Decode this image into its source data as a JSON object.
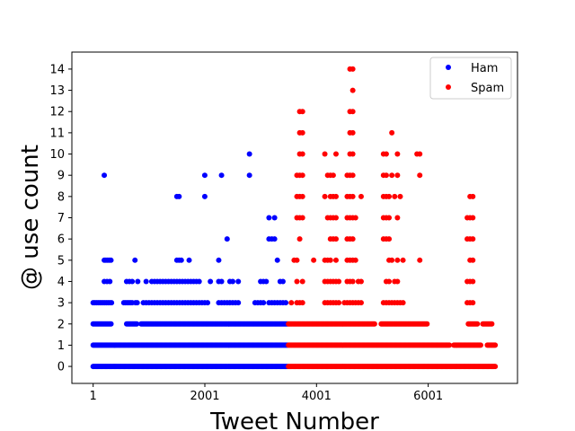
{
  "chart_data": {
    "type": "scatter",
    "xlabel": "Tweet Number",
    "ylabel": "@ use count",
    "xlim": [
      -380,
      7600
    ],
    "ylim": [
      -0.8,
      14.8
    ],
    "xticks": [
      1,
      2001,
      4001,
      6001
    ],
    "yticks": [
      0,
      1,
      2,
      3,
      4,
      5,
      6,
      7,
      8,
      9,
      10,
      11,
      12,
      13,
      14
    ],
    "grid": false,
    "legend_position": "top-right",
    "colors": {
      "Ham": "#0000ff",
      "Spam": "#ff0000"
    },
    "series": [
      {
        "name": "Ham",
        "color": "#0000ff",
        "bands": [
          {
            "y": 0,
            "x_from": 1,
            "x_to": 3500
          },
          {
            "y": 1,
            "x_from": 1,
            "x_to": 3500
          },
          {
            "y": 2,
            "x_from": 1,
            "x_to": 3500,
            "gaps": [
              [
                330,
                600
              ],
              [
                800,
                850
              ]
            ]
          }
        ],
        "clusters": [
          {
            "y": 3,
            "x": [
              1,
              30,
              60,
              90,
              120,
              150,
              180,
              210,
              240,
              270,
              300,
              330,
              550,
              580,
              610,
              640,
              670,
              700,
              760,
              790,
              900,
              950,
              1000,
              1050,
              1100,
              1150,
              1200,
              1250,
              1300,
              1350,
              1400,
              1450,
              1500,
              1550,
              1600,
              1650,
              1700,
              1750,
              1800,
              1850,
              1900,
              1950,
              2000,
              2050,
              2250,
              2300,
              2350,
              2400,
              2450,
              2500,
              2550,
              2600,
              2900,
              2950,
              3000,
              3050,
              3150,
              3200,
              3250,
              3300,
              3350,
              3400,
              3450
            ]
          },
          {
            "y": 4,
            "x": [
              200,
              250,
              300,
              600,
              650,
              700,
              800,
              950,
              1050,
              1100,
              1150,
              1200,
              1250,
              1300,
              1350,
              1400,
              1450,
              1500,
              1550,
              1600,
              1650,
              1700,
              1750,
              1800,
              1850,
              1900,
              2100,
              2250,
              2300,
              2450,
              2500,
              2600,
              3000,
              3050,
              3100,
              3350,
              3400
            ]
          },
          {
            "y": 5,
            "x": [
              200,
              230,
              260,
              290,
              320,
              750,
              1500,
              1540,
              1580,
              1720,
              2250,
              3300
            ]
          },
          {
            "y": 6,
            "x": [
              2400,
              3150,
              3200,
              3250
            ]
          },
          {
            "y": 7,
            "x": [
              3150,
              3250
            ]
          },
          {
            "y": 8,
            "x": [
              1500,
              1540,
              2000
            ]
          },
          {
            "y": 9,
            "x": [
              200,
              2000,
              2300,
              2800
            ]
          },
          {
            "y": 10,
            "x": [
              2800
            ]
          }
        ]
      },
      {
        "name": "Spam",
        "color": "#ff0000",
        "bands": [
          {
            "y": 0,
            "x_from": 3500,
            "x_to": 7200
          },
          {
            "y": 1,
            "x_from": 3500,
            "x_to": 7200,
            "gaps": [
              [
                6400,
                6450
              ],
              [
                6950,
                7050
              ]
            ]
          },
          {
            "y": 2,
            "x_from": 3500,
            "x_to": 7150,
            "gaps": [
              [
                5050,
                5150
              ],
              [
                6000,
                6700
              ],
              [
                6900,
                6970
              ]
            ]
          }
        ],
        "clusters": [
          {
            "y": 3,
            "x": [
              3550,
              3650,
              3700,
              3750,
              4150,
              4200,
              4250,
              4300,
              4350,
              4400,
              4500,
              4550,
              4600,
              4650,
              4700,
              4750,
              4800,
              5200,
              5250,
              5300,
              5350,
              5400,
              5450,
              5500,
              5550,
              6700,
              6750,
              6800
            ]
          },
          {
            "y": 4,
            "x": [
              3650,
              3750,
              4150,
              4200,
              4250,
              4300,
              4350,
              4400,
              4550,
              4600,
              4650,
              4750,
              4800,
              5250,
              5300,
              5400,
              5450,
              6700,
              6750,
              6800
            ]
          },
          {
            "y": 5,
            "x": [
              3600,
              3650,
              3950,
              4150,
              4200,
              4250,
              4350,
              4550,
              4600,
              4650,
              4700,
              5300,
              5350,
              5450,
              5550,
              5850,
              6750,
              6800
            ]
          },
          {
            "y": 6,
            "x": [
              3700,
              4250,
              4300,
              4350,
              4550,
              4600,
              4650,
              5200,
              5250,
              5300,
              6700,
              6750,
              6800
            ]
          },
          {
            "y": 7,
            "x": [
              3650,
              3700,
              3750,
              4200,
              4250,
              4300,
              4350,
              4550,
              4600,
              4650,
              4700,
              5200,
              5250,
              5300,
              5450,
              6700,
              6750,
              6800
            ]
          },
          {
            "y": 8,
            "x": [
              3650,
              3700,
              3750,
              4150,
              4250,
              4300,
              4350,
              4550,
              4600,
              4650,
              4800,
              5200,
              5250,
              5300,
              5400,
              5500,
              6750,
              6800
            ]
          },
          {
            "y": 9,
            "x": [
              3650,
              3700,
              3750,
              4200,
              4250,
              4300,
              4550,
              4600,
              4650,
              5200,
              5250,
              5350,
              5450,
              5850
            ]
          },
          {
            "y": 10,
            "x": [
              3700,
              3750,
              4150,
              4350,
              4600,
              4650,
              5200,
              5250,
              5450,
              5800,
              5850
            ]
          },
          {
            "y": 11,
            "x": [
              3700,
              3750,
              4600,
              4650,
              5350
            ]
          },
          {
            "y": 12,
            "x": [
              3700,
              3750,
              4600,
              4650
            ]
          },
          {
            "y": 13,
            "x": [
              4650
            ]
          },
          {
            "y": 14,
            "x": [
              4600,
              4650
            ]
          }
        ]
      }
    ]
  }
}
